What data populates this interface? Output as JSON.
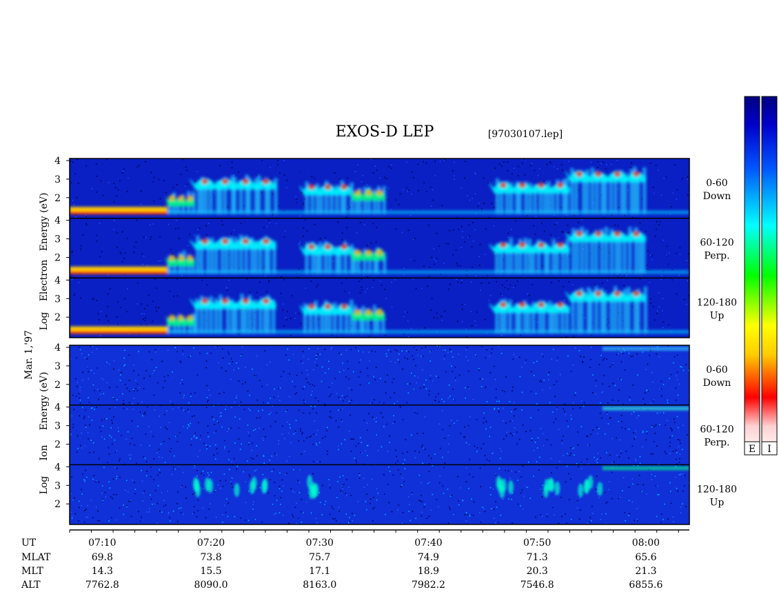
{
  "title": "EXOS-D LEP",
  "file_label": "[97030107.lep]",
  "date_label": "Mar. 1,'97",
  "colors": {
    "background": "#000080",
    "colorbar": [
      "#ffffff",
      "#ff0000",
      "#ffff00",
      "#00ff00",
      "#00ffff",
      "#0000ff",
      "#000080"
    ]
  },
  "colorbar": {
    "labels": [
      "E",
      "I"
    ]
  },
  "chart_data": {
    "type": "heatmap",
    "groups": [
      {
        "name": "Electron",
        "ylabel_parts": [
          "Log",
          "Electron",
          "Energy (eV)"
        ],
        "panels": [
          {
            "label_top": "0-60",
            "label_bottom": "Down"
          },
          {
            "label_top": "60-120",
            "label_bottom": "Perp."
          },
          {
            "label_top": "120-180",
            "label_bottom": "Up"
          }
        ]
      },
      {
        "name": "Ion",
        "ylabel_parts": [
          "Log",
          "Ion",
          "Energy (eV)"
        ],
        "panels": [
          {
            "label_top": "0-60",
            "label_bottom": "Down"
          },
          {
            "label_top": "60-120",
            "label_bottom": "Perp."
          },
          {
            "label_top": "120-180",
            "label_bottom": "Up"
          }
        ]
      }
    ],
    "y_ticks": [
      "4",
      "3",
      "2"
    ],
    "ylim": [
      1,
      4
    ],
    "x_ticks": [
      "07:10",
      "07:20",
      "07:30",
      "07:40",
      "07:50",
      "08:00"
    ],
    "time_range": [
      "07:07",
      "08:04"
    ],
    "orbit_table": {
      "row_labels": [
        "UT",
        "MLAT",
        "MLT",
        "ALT"
      ],
      "MLAT": [
        "69.8",
        "73.8",
        "75.7",
        "74.9",
        "71.3",
        "65.6"
      ],
      "MLT": [
        "14.3",
        "15.5",
        "17.1",
        "18.9",
        "20.3",
        "21.3"
      ],
      "ALT": [
        "7762.8",
        "8090.0",
        "8163.0",
        "7982.2",
        "7546.8",
        "6855.6"
      ]
    },
    "electron_features": [
      {
        "start": "07:07",
        "end": "07:16",
        "level": 1.3,
        "kind": "band"
      },
      {
        "start": "07:16",
        "end": "07:18.5",
        "level": 1.9,
        "kind": "blob"
      },
      {
        "start": "07:18.5",
        "end": "07:26",
        "level": 2.8,
        "kind": "burst"
      },
      {
        "start": "07:28.5",
        "end": "07:33",
        "level": 2.5,
        "kind": "burst"
      },
      {
        "start": "07:33",
        "end": "07:36",
        "level": 2.2,
        "kind": "blob"
      },
      {
        "start": "07:46",
        "end": "07:53",
        "level": 2.6,
        "kind": "burst"
      },
      {
        "start": "07:53",
        "end": "08:00",
        "level": 3.2,
        "kind": "burst"
      }
    ]
  }
}
